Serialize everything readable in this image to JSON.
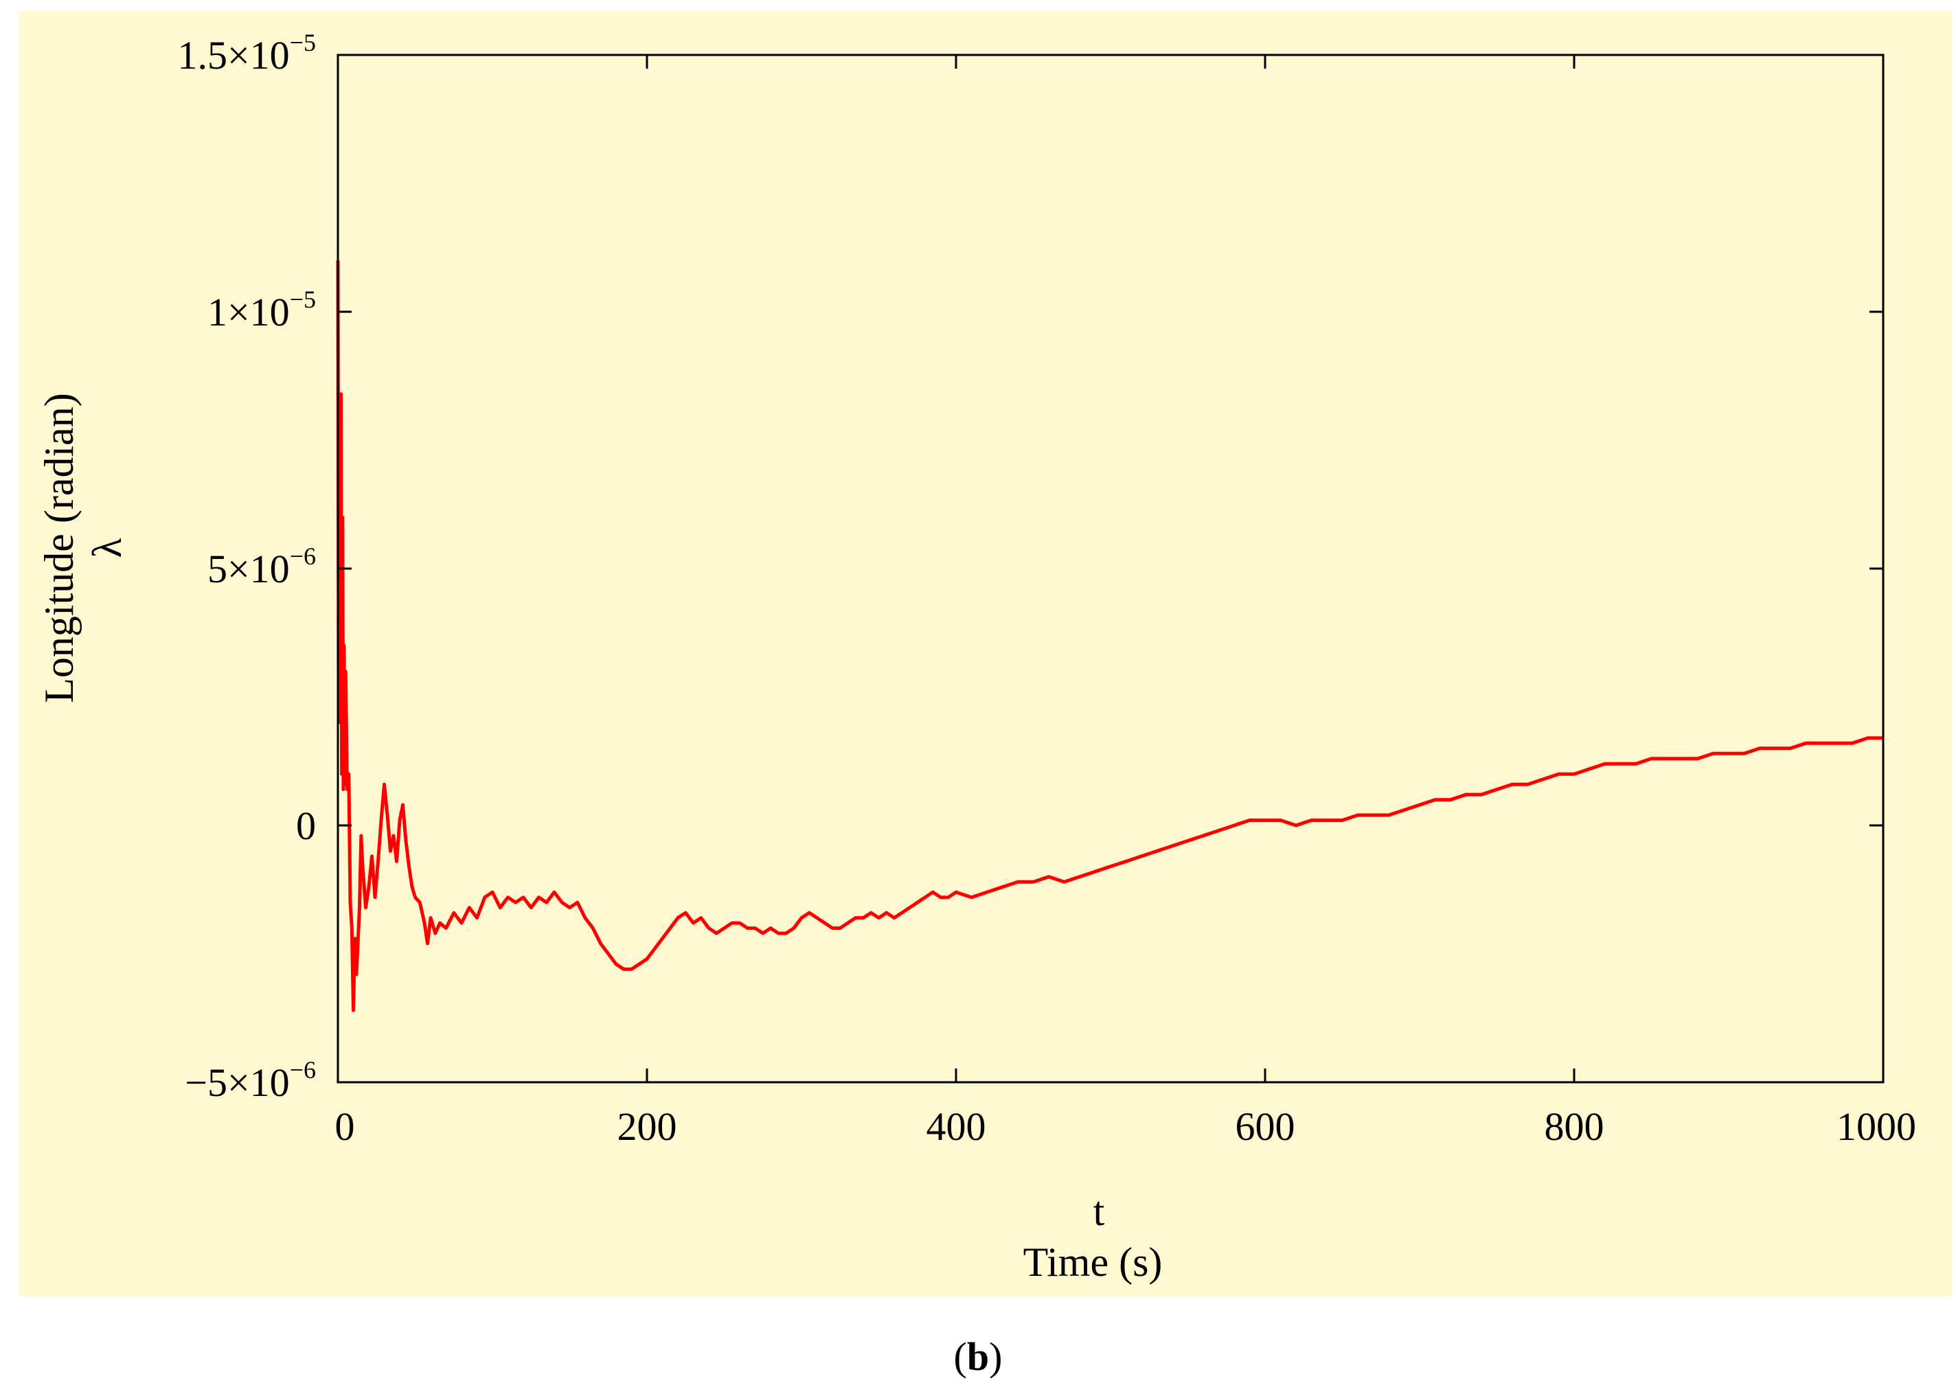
{
  "figure": {
    "caption_open": "(",
    "caption_letter": "b",
    "caption_close": ")",
    "background_color": "#fff8d0"
  },
  "chart_data": {
    "type": "line",
    "xlabel_symbol": "t",
    "xlabel": "Time (s)",
    "ylabel": "Longitude (radian)",
    "ylabel_symbol": "λ",
    "xlim": [
      0,
      1000
    ],
    "ylim": [
      -5e-06,
      1.5e-05
    ],
    "x_ticks": [
      {
        "value": 0,
        "label": "0"
      },
      {
        "value": 200,
        "label": "200"
      },
      {
        "value": 400,
        "label": "400"
      },
      {
        "value": 600,
        "label": "600"
      },
      {
        "value": 800,
        "label": "800"
      },
      {
        "value": 1000,
        "label": "1000"
      }
    ],
    "y_ticks": [
      {
        "value": -5e-06,
        "mantissa": "−5×10",
        "exponent": "−6"
      },
      {
        "value": 0,
        "mantissa": "0",
        "exponent": ""
      },
      {
        "value": 5e-06,
        "mantissa": "5×10",
        "exponent": "−6"
      },
      {
        "value": 1e-05,
        "mantissa": "1×10",
        "exponent": "−5"
      },
      {
        "value": 1.5e-05,
        "mantissa": "1.5×10",
        "exponent": "−5"
      }
    ],
    "grid": false,
    "series": [
      {
        "color": "#ff0000",
        "points": [
          [
            0,
            1.1e-05
          ],
          [
            0.5,
            2e-06
          ],
          [
            1,
            8e-06
          ],
          [
            1.5,
            3e-06
          ],
          [
            2,
            8.4e-06
          ],
          [
            2.5,
            1e-06
          ],
          [
            3,
            6e-06
          ],
          [
            3.5,
            7e-07
          ],
          [
            4,
            3.5e-06
          ],
          [
            4.5,
            8e-07
          ],
          [
            5,
            3e-06
          ],
          [
            6,
            7e-07
          ],
          [
            7,
            1e-06
          ],
          [
            8,
            -1.5e-06
          ],
          [
            9,
            -2e-06
          ],
          [
            10,
            -3.6e-06
          ],
          [
            11,
            -2.2e-06
          ],
          [
            12,
            -2.9e-06
          ],
          [
            14,
            -1.6e-06
          ],
          [
            15,
            -2e-07
          ],
          [
            16,
            -8e-07
          ],
          [
            18,
            -1.6e-06
          ],
          [
            20,
            -1.2e-06
          ],
          [
            22,
            -6e-07
          ],
          [
            24,
            -1.4e-06
          ],
          [
            26,
            -7e-07
          ],
          [
            28,
            1e-07
          ],
          [
            30,
            8e-07
          ],
          [
            32,
            2e-07
          ],
          [
            34,
            -5e-07
          ],
          [
            36,
            -2e-07
          ],
          [
            38,
            -7e-07
          ],
          [
            40,
            1e-07
          ],
          [
            42,
            4e-07
          ],
          [
            44,
            -3e-07
          ],
          [
            46,
            -8e-07
          ],
          [
            48,
            -1.2e-06
          ],
          [
            50,
            -1.4e-06
          ],
          [
            53,
            -1.5e-06
          ],
          [
            56,
            -1.9e-06
          ],
          [
            58,
            -2.3e-06
          ],
          [
            60,
            -1.8e-06
          ],
          [
            63,
            -2.1e-06
          ],
          [
            66,
            -1.9e-06
          ],
          [
            70,
            -2e-06
          ],
          [
            75,
            -1.7e-06
          ],
          [
            80,
            -1.9e-06
          ],
          [
            85,
            -1.6e-06
          ],
          [
            90,
            -1.8e-06
          ],
          [
            95,
            -1.4e-06
          ],
          [
            100,
            -1.3e-06
          ],
          [
            105,
            -1.6e-06
          ],
          [
            110,
            -1.4e-06
          ],
          [
            115,
            -1.5e-06
          ],
          [
            120,
            -1.4e-06
          ],
          [
            125,
            -1.6e-06
          ],
          [
            130,
            -1.4e-06
          ],
          [
            135,
            -1.5e-06
          ],
          [
            140,
            -1.3e-06
          ],
          [
            145,
            -1.5e-06
          ],
          [
            150,
            -1.6e-06
          ],
          [
            155,
            -1.5e-06
          ],
          [
            160,
            -1.8e-06
          ],
          [
            165,
            -2e-06
          ],
          [
            170,
            -2.3e-06
          ],
          [
            175,
            -2.5e-06
          ],
          [
            180,
            -2.7e-06
          ],
          [
            185,
            -2.8e-06
          ],
          [
            190,
            -2.8e-06
          ],
          [
            195,
            -2.7e-06
          ],
          [
            200,
            -2.6e-06
          ],
          [
            205,
            -2.4e-06
          ],
          [
            210,
            -2.2e-06
          ],
          [
            215,
            -2e-06
          ],
          [
            220,
            -1.8e-06
          ],
          [
            225,
            -1.7e-06
          ],
          [
            230,
            -1.9e-06
          ],
          [
            235,
            -1.8e-06
          ],
          [
            240,
            -2e-06
          ],
          [
            245,
            -2.1e-06
          ],
          [
            250,
            -2e-06
          ],
          [
            255,
            -1.9e-06
          ],
          [
            260,
            -1.9e-06
          ],
          [
            265,
            -2e-06
          ],
          [
            270,
            -2e-06
          ],
          [
            275,
            -2.1e-06
          ],
          [
            280,
            -2e-06
          ],
          [
            285,
            -2.1e-06
          ],
          [
            290,
            -2.1e-06
          ],
          [
            295,
            -2e-06
          ],
          [
            300,
            -1.8e-06
          ],
          [
            305,
            -1.7e-06
          ],
          [
            310,
            -1.8e-06
          ],
          [
            315,
            -1.9e-06
          ],
          [
            320,
            -2e-06
          ],
          [
            325,
            -2e-06
          ],
          [
            330,
            -1.9e-06
          ],
          [
            335,
            -1.8e-06
          ],
          [
            340,
            -1.8e-06
          ],
          [
            345,
            -1.7e-06
          ],
          [
            350,
            -1.8e-06
          ],
          [
            355,
            -1.7e-06
          ],
          [
            360,
            -1.8e-06
          ],
          [
            365,
            -1.7e-06
          ],
          [
            370,
            -1.6e-06
          ],
          [
            375,
            -1.5e-06
          ],
          [
            380,
            -1.4e-06
          ],
          [
            385,
            -1.3e-06
          ],
          [
            390,
            -1.4e-06
          ],
          [
            395,
            -1.4e-06
          ],
          [
            400,
            -1.3e-06
          ],
          [
            410,
            -1.4e-06
          ],
          [
            420,
            -1.3e-06
          ],
          [
            430,
            -1.2e-06
          ],
          [
            440,
            -1.1e-06
          ],
          [
            450,
            -1.1e-06
          ],
          [
            460,
            -1e-06
          ],
          [
            470,
            -1.1e-06
          ],
          [
            480,
            -1e-06
          ],
          [
            490,
            -9e-07
          ],
          [
            500,
            -8e-07
          ],
          [
            510,
            -7e-07
          ],
          [
            520,
            -6e-07
          ],
          [
            530,
            -5e-07
          ],
          [
            540,
            -4e-07
          ],
          [
            550,
            -3e-07
          ],
          [
            560,
            -2e-07
          ],
          [
            570,
            -1e-07
          ],
          [
            580,
            0.0
          ],
          [
            590,
            1e-07
          ],
          [
            600,
            1e-07
          ],
          [
            610,
            1e-07
          ],
          [
            620,
            0.0
          ],
          [
            630,
            1e-07
          ],
          [
            640,
            1e-07
          ],
          [
            650,
            1e-07
          ],
          [
            660,
            2e-07
          ],
          [
            670,
            2e-07
          ],
          [
            680,
            2e-07
          ],
          [
            690,
            3e-07
          ],
          [
            700,
            4e-07
          ],
          [
            710,
            5e-07
          ],
          [
            720,
            5e-07
          ],
          [
            730,
            6e-07
          ],
          [
            740,
            6e-07
          ],
          [
            750,
            7e-07
          ],
          [
            760,
            8e-07
          ],
          [
            770,
            8e-07
          ],
          [
            780,
            9e-07
          ],
          [
            790,
            1e-06
          ],
          [
            800,
            1e-06
          ],
          [
            810,
            1.1e-06
          ],
          [
            820,
            1.2e-06
          ],
          [
            830,
            1.2e-06
          ],
          [
            840,
            1.2e-06
          ],
          [
            850,
            1.3e-06
          ],
          [
            860,
            1.3e-06
          ],
          [
            870,
            1.3e-06
          ],
          [
            880,
            1.3e-06
          ],
          [
            890,
            1.4e-06
          ],
          [
            900,
            1.4e-06
          ],
          [
            910,
            1.4e-06
          ],
          [
            920,
            1.5e-06
          ],
          [
            930,
            1.5e-06
          ],
          [
            940,
            1.5e-06
          ],
          [
            950,
            1.6e-06
          ],
          [
            960,
            1.6e-06
          ],
          [
            970,
            1.6e-06
          ],
          [
            980,
            1.6e-06
          ],
          [
            990,
            1.7e-06
          ],
          [
            1000,
            1.7e-06
          ]
        ]
      }
    ]
  }
}
